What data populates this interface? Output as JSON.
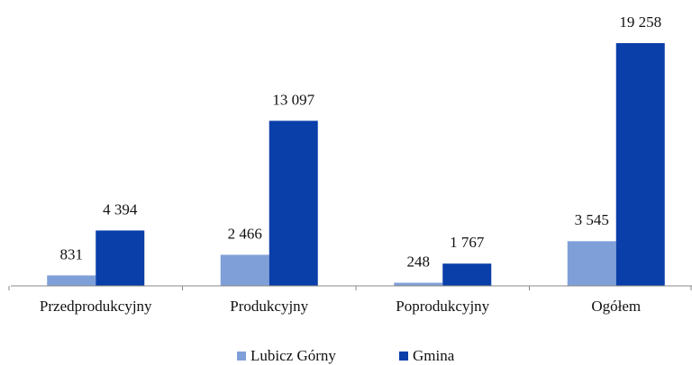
{
  "chart_data": {
    "type": "bar",
    "categories": [
      "Przedprodukcyjny",
      "Produkcyjny",
      "Poprodukcyjny",
      "Ogółem"
    ],
    "series": [
      {
        "name": "Lubicz Górny",
        "color": "#7f9fd9",
        "values": [
          831,
          2466,
          248,
          3545
        ],
        "value_labels": [
          "831",
          "2 466",
          "248",
          "3 545"
        ]
      },
      {
        "name": "Gmina",
        "color": "#0a3ea8",
        "values": [
          4394,
          13097,
          1767,
          19258
        ],
        "value_labels": [
          "4 394",
          "13 097",
          "1 767",
          "19 258"
        ]
      }
    ]
  }
}
